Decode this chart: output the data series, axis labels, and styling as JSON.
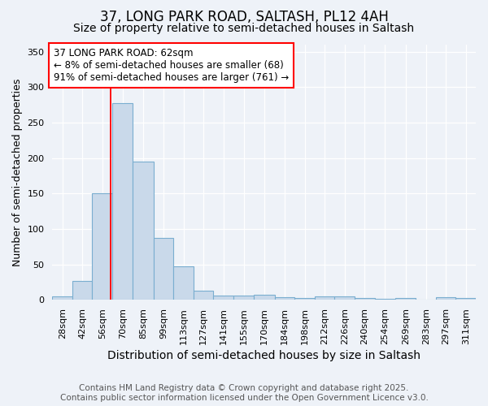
{
  "title1": "37, LONG PARK ROAD, SALTASH, PL12 4AH",
  "title2": "Size of property relative to semi-detached houses in Saltash",
  "xlabel": "Distribution of semi-detached houses by size in Saltash",
  "ylabel": "Number of semi-detached properties",
  "bin_labels": [
    "28sqm",
    "42sqm",
    "56sqm",
    "70sqm",
    "85sqm",
    "99sqm",
    "113sqm",
    "127sqm",
    "141sqm",
    "155sqm",
    "170sqm",
    "184sqm",
    "198sqm",
    "212sqm",
    "226sqm",
    "240sqm",
    "254sqm",
    "269sqm",
    "283sqm",
    "297sqm",
    "311sqm"
  ],
  "bin_edges": [
    21,
    35,
    49,
    63,
    77.5,
    92,
    106,
    120,
    134,
    148,
    162.5,
    177,
    191,
    205,
    219,
    233,
    247,
    261.5,
    276,
    290,
    304,
    318
  ],
  "bar_heights": [
    5,
    27,
    150,
    278,
    195,
    87,
    47,
    13,
    6,
    6,
    7,
    4,
    3,
    5,
    5,
    2,
    1,
    3,
    0,
    4,
    3
  ],
  "bar_color": "#c9d9ea",
  "bar_edge_color": "#7aaed0",
  "red_line_x": 62,
  "ylim": [
    0,
    360
  ],
  "annotation_text": "37 LONG PARK ROAD: 62sqm\n← 8% of semi-detached houses are smaller (68)\n91% of semi-detached houses are larger (761) →",
  "annotation_box_color": "white",
  "annotation_border_color": "red",
  "footer1": "Contains HM Land Registry data © Crown copyright and database right 2025.",
  "footer2": "Contains public sector information licensed under the Open Government Licence v3.0.",
  "background_color": "#eef2f8",
  "grid_color": "white",
  "title1_fontsize": 12,
  "title2_fontsize": 10,
  "xlabel_fontsize": 10,
  "ylabel_fontsize": 9,
  "tick_fontsize": 8,
  "footer_fontsize": 7.5,
  "annot_fontsize": 8.5
}
